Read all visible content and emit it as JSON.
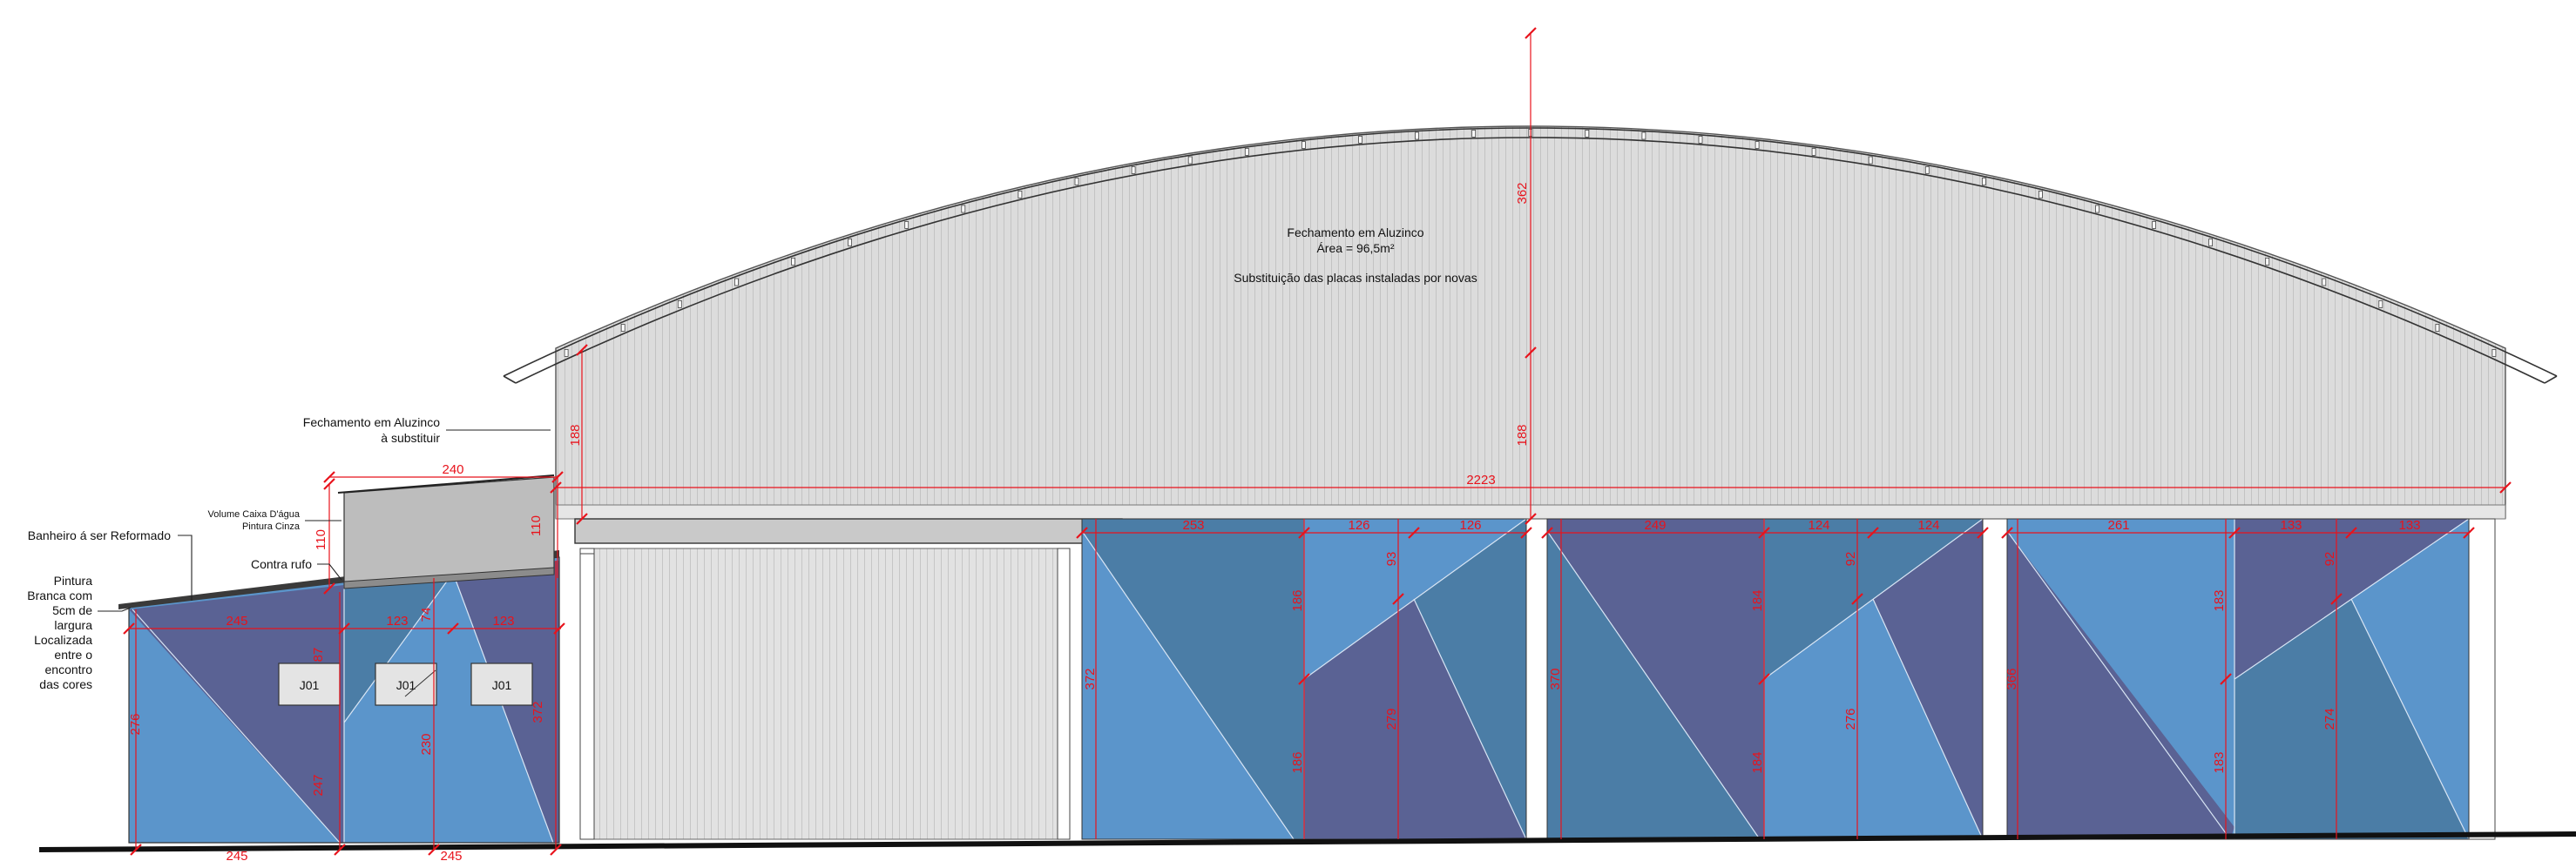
{
  "notes": {
    "main_title": "Fechamento em Aluzinco",
    "main_area": "Área = 96,5m²",
    "main_note": "Substituição das placas instaladas por novas",
    "left_closure": [
      "Fechamento em Aluzinco",
      "à substituir"
    ],
    "water_tank": [
      "Volume Caixa D'água",
      "Pintura Cinza"
    ],
    "bathroom": "Banheiro á ser Reformado",
    "flashing": "Contra rufo",
    "stripe": [
      "Pintura",
      "Branca com",
      "5cm de",
      "largura",
      "Localizada",
      "entre o",
      "encontro",
      "das cores"
    ]
  },
  "windows": [
    "J01",
    "J01",
    "J01"
  ],
  "dimensions": {
    "total_width": "2223",
    "arch_height": "362",
    "wall_height_left": "188",
    "wall_height_center": "188",
    "tank_width": "240",
    "tank_height_left": "110",
    "tank_height_right": "110",
    "bath_seg1": "245",
    "bath_seg2": "123",
    "bath_seg3": "123",
    "bath_top_a": "74",
    "bath_top_b": "87",
    "bath_height_left": "276",
    "bath_height_mid": "230",
    "bath_lower_a": "247",
    "bath_right": "372",
    "bath_bottom_1": "245",
    "bath_bottom_2": "245",
    "p1_w1": "253",
    "p1_w2": "126",
    "p1_w3": "126",
    "p1_h": "372",
    "p1_top": "186",
    "p1_bot": "186",
    "p1_small": "93",
    "p1_mid": "279",
    "p2_w1": "249",
    "p2_w2": "124",
    "p2_w3": "124",
    "p2_h": "370",
    "p2_top": "184",
    "p2_bot": "184",
    "p2_small": "92",
    "p2_mid": "276",
    "p3_w1": "261",
    "p3_w2": "133",
    "p3_w3": "133",
    "p3_h": "366",
    "p3_top": "183",
    "p3_bot": "183",
    "p3_small": "92",
    "p3_mid": "274"
  },
  "colors": {
    "cladding": "#dcdcdc",
    "rib": "#c6c6c6",
    "blue_light": "#5b95cb",
    "blue_mid": "#4b7da6",
    "purple": "#5a6294",
    "tank_gray": "#bdbdbd",
    "dimension_red": "#e8131c"
  }
}
